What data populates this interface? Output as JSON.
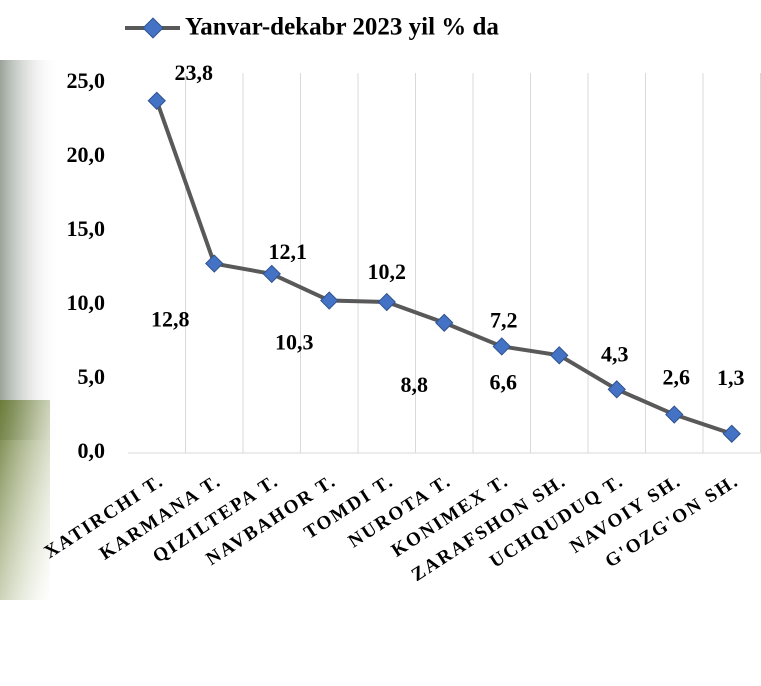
{
  "chart_data": {
    "type": "line",
    "categories": [
      "XATIRCHI T.",
      "KARMANA T.",
      "QIZILTEPA T.",
      "NAVBAHOR T.",
      "TOMDI T.",
      "NUROTA T.",
      "KONIMEX T.",
      "ZARAFSHON SH.",
      "UCHQUDUQ T.",
      "NAVOIY SH.",
      "G'OZG'ON SH."
    ],
    "series": [
      {
        "name": "Yanvar-dekabr 2023 yil % da",
        "color": "#595959",
        "marker_color": "#4472c4",
        "values": [
          23.8,
          12.8,
          12.1,
          10.3,
          10.2,
          8.8,
          7.2,
          6.6,
          4.3,
          2.6,
          1.3
        ],
        "value_labels": [
          "23,8",
          "12,8",
          "12,1",
          "10,3",
          "10,2",
          "8,8",
          "7,2",
          "6,6",
          "4,3",
          "2,6",
          "1,3"
        ]
      }
    ],
    "ylim": [
      0,
      25
    ],
    "yticks": [
      {
        "value": 0,
        "label": "0,0"
      },
      {
        "value": 5,
        "label": "5,0"
      },
      {
        "value": 10,
        "label": "10,0"
      },
      {
        "value": 15,
        "label": "15,0"
      },
      {
        "value": 20,
        "label": "20,0"
      },
      {
        "value": 25,
        "label": "25,0"
      }
    ],
    "grid": true,
    "legend": "top"
  }
}
